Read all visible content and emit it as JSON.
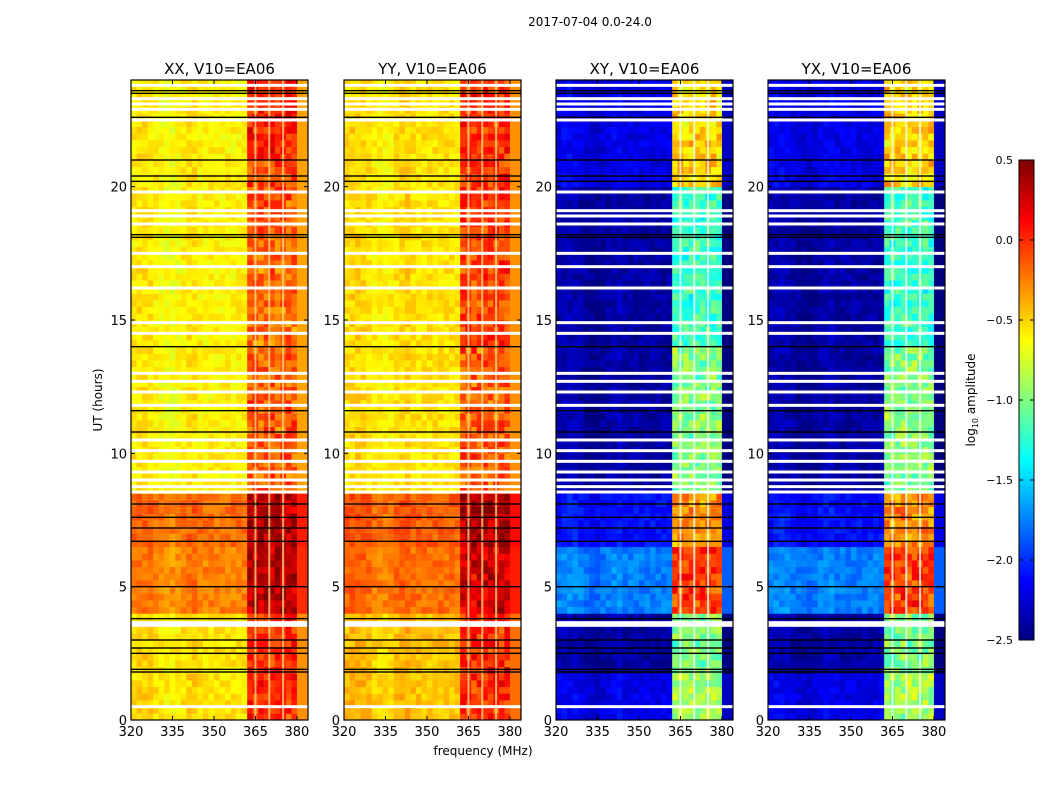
{
  "chart_data": {
    "type": "heatmap",
    "title": "2017-07-04 0.0-24.0",
    "xlabel": "frequency (MHz)",
    "ylabel": "UT (hours)",
    "xlim": [
      320,
      384
    ],
    "ylim": [
      0,
      24
    ],
    "xticks": [
      320,
      335,
      350,
      365,
      380
    ],
    "yticks": [
      0,
      5,
      10,
      15,
      20
    ],
    "colorbar": {
      "label_main": "log",
      "label_sub": "10",
      "label_rest": " amplitude",
      "range": [
        -2.5,
        0.5
      ],
      "ticks": [
        0.5,
        0.0,
        -0.5,
        -1.0,
        -1.5,
        -2.0,
        -2.5
      ],
      "tick_labels": [
        "0.5",
        "0.0",
        "−0.5",
        "−1.0",
        "−1.5",
        "−2.0",
        "−2.5"
      ],
      "colormap": "jet"
    },
    "frequency_bin_width_mhz": 2,
    "time_bin_hours": 0.25,
    "rfi_band_mhz": [
      361,
      380
    ],
    "rfi_gaps_mhz": [
      365,
      370,
      375
    ],
    "flagged_times_hours": [
      0.5,
      3.55,
      3.65,
      8.55,
      8.75,
      9.0,
      9.3,
      9.7,
      10.1,
      10.5,
      11.8,
      12.3,
      12.7,
      13.0,
      14.5,
      14.9,
      16.2,
      17.0,
      17.5,
      18.6,
      18.9,
      19.1,
      19.8,
      22.5,
      22.9,
      23.1,
      23.3,
      23.8
    ],
    "boundary_times_hours": [
      1.8,
      1.9,
      2.5,
      2.7,
      3.0,
      3.8,
      5.0,
      6.7,
      7.2,
      7.6,
      8.1,
      10.8,
      11.6,
      14.0,
      18.1,
      18.2,
      20.2,
      20.4,
      21.0,
      22.6,
      23.5,
      23.6
    ],
    "panels": [
      {
        "title": "XX, V10=EA06",
        "segments": [
          {
            "start": 0,
            "end": 3.8,
            "base": -0.55,
            "band": 0.55
          },
          {
            "start": 3.8,
            "end": 6.5,
            "base": -0.25,
            "band": 0.6
          },
          {
            "start": 6.5,
            "end": 8.4,
            "base": -0.2,
            "band": 0.55
          },
          {
            "start": 8.4,
            "end": 14,
            "base": -0.6,
            "band": 0.45
          },
          {
            "start": 14,
            "end": 18.2,
            "base": -0.6,
            "band": 0.4
          },
          {
            "start": 18.2,
            "end": 21,
            "base": -0.6,
            "band": 0.5
          },
          {
            "start": 21,
            "end": 24,
            "base": -0.6,
            "band": 0.65
          }
        ]
      },
      {
        "title": "YY, V10=EA06",
        "segments": [
          {
            "start": 0,
            "end": 3.8,
            "base": -0.45,
            "band": 0.45
          },
          {
            "start": 3.8,
            "end": 6.4,
            "base": -0.2,
            "band": 0.45
          },
          {
            "start": 6.4,
            "end": 8.4,
            "base": -0.15,
            "band": 0.5
          },
          {
            "start": 8.4,
            "end": 14,
            "base": -0.55,
            "band": 0.4
          },
          {
            "start": 14,
            "end": 18.2,
            "base": -0.55,
            "band": 0.5
          },
          {
            "start": 18.2,
            "end": 24,
            "base": -0.55,
            "band": 0.55
          }
        ]
      },
      {
        "title": "XY, V10=EA06",
        "segments": [
          {
            "start": 0,
            "end": 1.7,
            "base": -2.2,
            "band": 1.3
          },
          {
            "start": 1.7,
            "end": 4,
            "base": -2.4,
            "band": 1.4
          },
          {
            "start": 4,
            "end": 6.4,
            "base": -1.75,
            "band": 1.7
          },
          {
            "start": 6.4,
            "end": 8.5,
            "base": -2.1,
            "band": 1.8
          },
          {
            "start": 8.5,
            "end": 14,
            "base": -2.4,
            "band": 1.4
          },
          {
            "start": 14,
            "end": 20,
            "base": -2.4,
            "band": 1.2
          },
          {
            "start": 20,
            "end": 24,
            "base": -2.2,
            "band": 1.7
          }
        ]
      },
      {
        "title": "YX, V10=EA06",
        "segments": [
          {
            "start": 0,
            "end": 1.7,
            "base": -2.2,
            "band": 1.3
          },
          {
            "start": 1.7,
            "end": 4,
            "base": -2.4,
            "band": 1.4
          },
          {
            "start": 4,
            "end": 6.4,
            "base": -1.75,
            "band": 1.7
          },
          {
            "start": 6.4,
            "end": 8.5,
            "base": -2.1,
            "band": 1.8
          },
          {
            "start": 8.5,
            "end": 14,
            "base": -2.4,
            "band": 1.4
          },
          {
            "start": 14,
            "end": 20,
            "base": -2.4,
            "band": 1.2
          },
          {
            "start": 20,
            "end": 24,
            "base": -2.2,
            "band": 1.7
          }
        ]
      }
    ]
  }
}
